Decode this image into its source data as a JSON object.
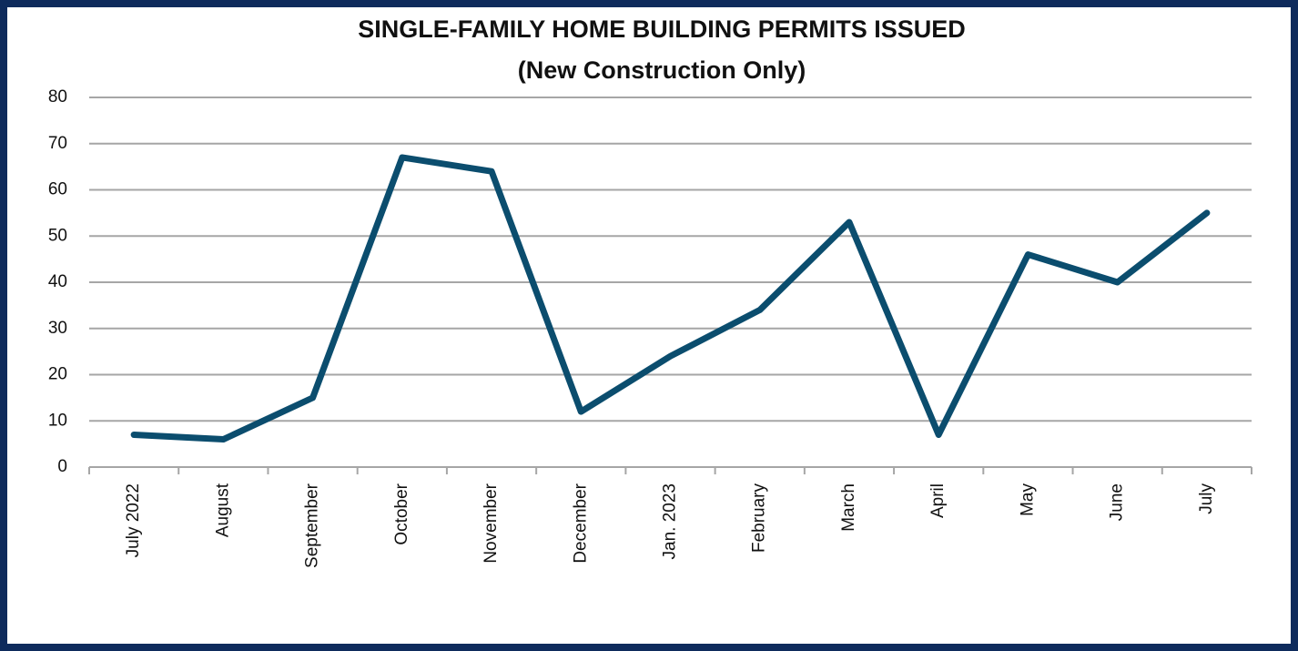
{
  "chart_data": {
    "type": "line",
    "title": "SINGLE-FAMILY HOME BUILDING PERMITS ISSUED",
    "subtitle": "(New Construction Only)",
    "categories": [
      "July 2022",
      "August",
      "September",
      "October",
      "November",
      "December",
      "Jan. 2023",
      "February",
      "March",
      "April",
      "May",
      "June",
      "July"
    ],
    "values": [
      7,
      6,
      15,
      67,
      64,
      12,
      24,
      34,
      53,
      7,
      46,
      40,
      55
    ],
    "color": "#0b4d6e",
    "ylim": [
      0,
      80
    ],
    "yticks": [
      0,
      10,
      20,
      30,
      40,
      50,
      60,
      70,
      80
    ],
    "grid": true
  }
}
